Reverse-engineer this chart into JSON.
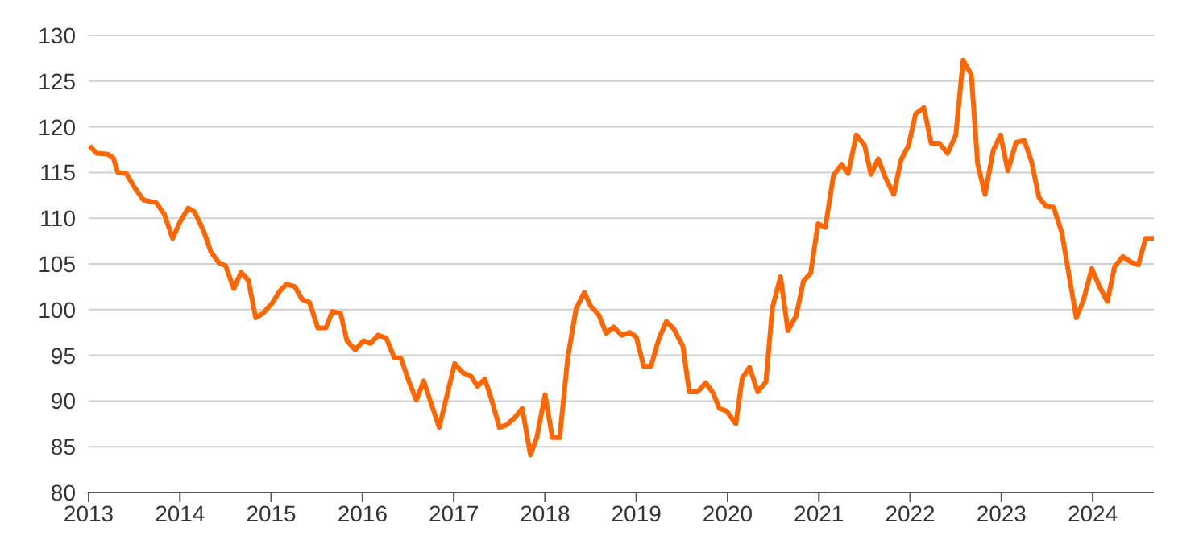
{
  "chart_data": {
    "type": "line",
    "x": [
      2013.01,
      2013.09,
      2013.21,
      2013.27,
      2013.32,
      2013.41,
      2013.5,
      2013.6,
      2013.74,
      2013.83,
      2013.92,
      2014.0,
      2014.09,
      2014.16,
      2014.26,
      2014.34,
      2014.43,
      2014.5,
      2014.59,
      2014.67,
      2014.75,
      2014.83,
      2014.91,
      2015.01,
      2015.09,
      2015.17,
      2015.26,
      2015.34,
      2015.42,
      2015.51,
      2015.6,
      2015.67,
      2015.76,
      2015.83,
      2015.92,
      2016.01,
      2016.09,
      2016.17,
      2016.26,
      2016.35,
      2016.42,
      2016.51,
      2016.59,
      2016.67,
      2016.84,
      2017.01,
      2017.1,
      2017.19,
      2017.26,
      2017.34,
      2017.41,
      2017.5,
      2017.58,
      2017.67,
      2017.75,
      2017.84,
      2017.91,
      2018.0,
      2018.08,
      2018.16,
      2018.25,
      2018.34,
      2018.43,
      2018.5,
      2018.59,
      2018.67,
      2018.75,
      2018.84,
      2018.93,
      2019.0,
      2019.08,
      2019.16,
      2019.25,
      2019.33,
      2019.41,
      2019.51,
      2019.58,
      2019.67,
      2019.76,
      2019.84,
      2019.91,
      2019.99,
      2020.09,
      2020.16,
      2020.24,
      2020.33,
      2020.42,
      2020.49,
      2020.58,
      2020.66,
      2020.75,
      2020.83,
      2020.91,
      2020.99,
      2021.07,
      2021.16,
      2021.25,
      2021.32,
      2021.41,
      2021.5,
      2021.57,
      2021.65,
      2021.73,
      2021.82,
      2021.9,
      2021.98,
      2022.06,
      2022.15,
      2022.23,
      2022.32,
      2022.41,
      2022.5,
      2022.58,
      2022.67,
      2022.74,
      2022.82,
      2022.91,
      2022.99,
      2023.07,
      2023.16,
      2023.25,
      2023.33,
      2023.41,
      2023.49,
      2023.57,
      2023.66,
      2023.74,
      2023.82,
      2023.9,
      2023.99,
      2024.07,
      2024.16,
      2024.24,
      2024.33,
      2024.42,
      2024.5,
      2024.58,
      2024.67
    ],
    "series": [
      {
        "color": "#ff6600",
        "values": [
          117.9,
          117.1,
          117.0,
          116.6,
          115.0,
          114.9,
          113.4,
          112.0,
          111.7,
          110.4,
          107.8,
          109.6,
          111.1,
          110.7,
          108.6,
          106.3,
          105.1,
          104.8,
          102.3,
          104.1,
          103.2,
          99.1,
          99.6,
          100.7,
          102.0,
          102.8,
          102.5,
          101.1,
          100.8,
          98.0,
          98.0,
          99.8,
          99.6,
          96.6,
          95.6,
          96.6,
          96.3,
          97.2,
          96.9,
          94.7,
          94.7,
          92.1,
          90.1,
          92.2,
          87.1,
          94.1,
          93.1,
          92.7,
          91.6,
          92.4,
          90.3,
          87.1,
          87.4,
          88.2,
          89.2,
          84.1,
          86.0,
          90.7,
          86.0,
          86.0,
          94.8,
          100.1,
          101.9,
          100.4,
          99.4,
          97.4,
          98.1,
          97.2,
          97.5,
          97.0,
          93.8,
          93.8,
          96.9,
          98.7,
          97.9,
          96.0,
          91.0,
          91.0,
          92.0,
          90.9,
          89.2,
          88.9,
          87.5,
          92.5,
          93.7,
          91.0,
          92.1,
          100.2,
          103.6,
          97.7,
          99.3,
          103.1,
          104.0,
          109.4,
          109.0,
          114.7,
          115.9,
          114.9,
          119.1,
          118.0,
          114.8,
          116.5,
          114.4,
          112.6,
          116.4,
          117.9,
          121.4,
          122.1,
          118.2,
          118.2,
          117.1,
          119.1,
          127.3,
          125.7,
          115.9,
          112.6,
          117.4,
          119.1,
          115.2,
          118.3,
          118.5,
          116.2,
          112.3,
          111.3,
          111.2,
          108.5,
          103.8,
          99.1,
          101.1,
          104.5,
          102.6,
          100.9,
          104.7,
          105.8,
          105.2,
          104.9,
          107.8,
          107.8
        ]
      }
    ],
    "xlim": [
      2013,
      2024.67
    ],
    "xticks": [
      2013,
      2014,
      2015,
      2016,
      2017,
      2018,
      2019,
      2020,
      2021,
      2022,
      2023,
      2024
    ],
    "ylim": [
      80,
      130
    ],
    "yticks": [
      80,
      85,
      90,
      95,
      100,
      105,
      110,
      115,
      120,
      125,
      130
    ],
    "grid": "y",
    "legend": false
  }
}
